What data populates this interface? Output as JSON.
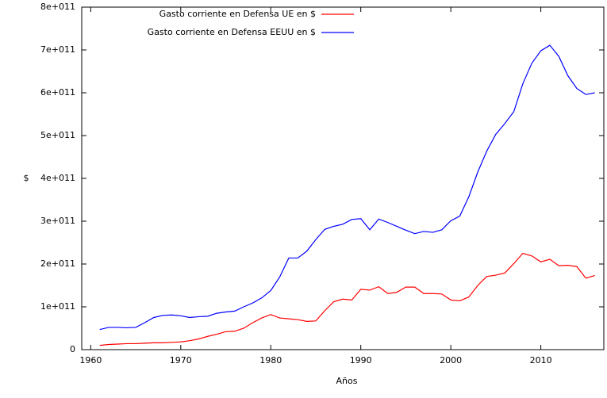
{
  "chart_data": {
    "type": "line",
    "xlabel": "Años",
    "ylabel": "$",
    "x": [
      1961,
      1962,
      1963,
      1964,
      1965,
      1966,
      1967,
      1968,
      1969,
      1970,
      1971,
      1972,
      1973,
      1974,
      1975,
      1976,
      1977,
      1978,
      1979,
      1980,
      1981,
      1982,
      1983,
      1984,
      1985,
      1986,
      1987,
      1988,
      1989,
      1990,
      1991,
      1992,
      1993,
      1994,
      1995,
      1996,
      1997,
      1998,
      1999,
      2000,
      2001,
      2002,
      2003,
      2004,
      2005,
      2006,
      2007,
      2008,
      2009,
      2010,
      2011,
      2012,
      2013,
      2014,
      2015,
      2016
    ],
    "series": [
      {
        "name": "Gasto corriente en Defensa UE en $",
        "color": "#ff0000",
        "values": [
          10000000000.0,
          12000000000.0,
          13000000000.0,
          14000000000.0,
          14000000000.0,
          15000000000.0,
          16000000000.0,
          16000000000.0,
          17000000000.0,
          18000000000.0,
          21000000000.0,
          25000000000.0,
          31000000000.0,
          36000000000.0,
          42000000000.0,
          43000000000.0,
          50000000000.0,
          63000000000.0,
          74000000000.0,
          82000000000.0,
          74000000000.0,
          72000000000.0,
          70000000000.0,
          66000000000.0,
          67000000000.0,
          91000000000.0,
          112000000000.0,
          118000000000.0,
          116000000000.0,
          141000000000.0,
          139000000000.0,
          147000000000.0,
          131000000000.0,
          134000000000.0,
          146000000000.0,
          146000000000.0,
          131000000000.0,
          131000000000.0,
          130000000000.0,
          116000000000.0,
          114000000000.0,
          123000000000.0,
          150000000000.0,
          171000000000.0,
          174000000000.0,
          179000000000.0,
          201000000000.0,
          225000000000.0,
          219000000000.0,
          205000000000.0,
          211000000000.0,
          196000000000.0,
          197000000000.0,
          194000000000.0,
          167000000000.0,
          173000000000.0
        ]
      },
      {
        "name": "Gasto corriente en Defensa EEUU en $",
        "color": "#0000ff",
        "values": [
          47000000000.0,
          52000000000.0,
          52000000000.0,
          51000000000.0,
          52000000000.0,
          63000000000.0,
          75000000000.0,
          80000000000.0,
          81000000000.0,
          79000000000.0,
          75000000000.0,
          77000000000.0,
          78000000000.0,
          85000000000.0,
          88000000000.0,
          90000000000.0,
          100000000000.0,
          109000000000.0,
          121000000000.0,
          138000000000.0,
          170000000000.0,
          214000000000.0,
          214000000000.0,
          230000000000.0,
          257000000000.0,
          281000000000.0,
          288000000000.0,
          293000000000.0,
          304000000000.0,
          306000000000.0,
          280000000000.0,
          305000000000.0,
          297000000000.0,
          288000000000.0,
          279000000000.0,
          271000000000.0,
          276000000000.0,
          274000000000.0,
          280000000000.0,
          301000000000.0,
          312000000000.0,
          357000000000.0,
          415000000000.0,
          464000000000.0,
          503000000000.0,
          528000000000.0,
          556000000000.0,
          621000000000.0,
          669000000000.0,
          698000000000.0,
          711000000000.0,
          685000000000.0,
          640000000000.0,
          610000000000.0,
          596000000000.0,
          600000000000.0
        ]
      }
    ],
    "xlim": [
      1959,
      2017
    ],
    "xticks": [
      1960,
      1970,
      1980,
      1990,
      2000,
      2010
    ],
    "ylim": [
      0,
      800000000000
    ],
    "yticks": [
      0,
      {
        "value": 100000000000,
        "label": "1e+011"
      },
      {
        "value": 200000000000,
        "label": "2e+011"
      },
      {
        "value": 300000000000,
        "label": "3e+011"
      },
      {
        "value": 400000000000,
        "label": "4e+011"
      },
      {
        "value": 500000000000,
        "label": "5e+011"
      },
      {
        "value": 600000000000,
        "label": "6e+011"
      },
      {
        "value": 700000000000,
        "label": "7e+011"
      },
      {
        "value": 800000000000,
        "label": "8e+011"
      }
    ],
    "legend": "top left",
    "grid": false
  }
}
